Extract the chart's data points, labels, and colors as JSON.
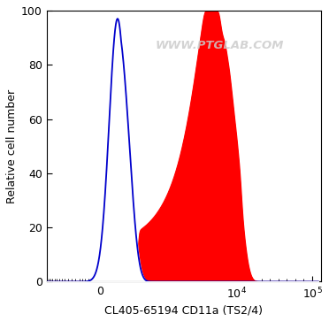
{
  "xlabel": "CL405-65194 CD11a (TS2/4)",
  "ylabel": "Relative cell number",
  "ylim": [
    0,
    100
  ],
  "watermark": "WWW.PTGLAB.COM",
  "background_color": "#ffffff",
  "plot_bg_color": "#ffffff",
  "yticks": [
    0,
    20,
    40,
    60,
    80,
    100
  ],
  "blue_color": "#0000cc",
  "red_color": "#ff0000",
  "linthresh": 300,
  "linscale": 0.25
}
